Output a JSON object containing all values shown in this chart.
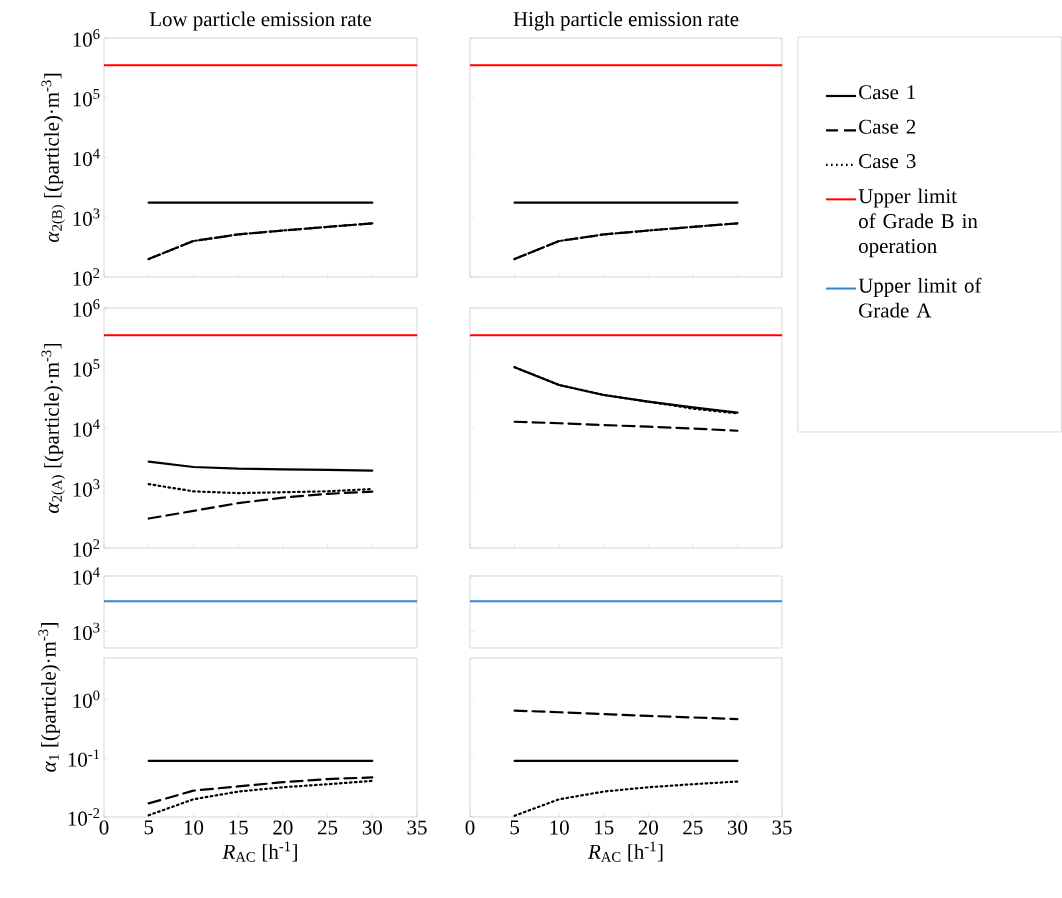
{
  "chart_data": [
    {
      "type": "line",
      "title": "Low particle emission rate",
      "ylabel": "*α*$_{2(B)}$ [(particle)·m$^{-3}$]",
      "log": true,
      "tick_labels": "y",
      "xlim": [
        0,
        35
      ],
      "xticks": [
        0,
        5,
        10,
        15,
        20,
        25,
        30,
        35
      ],
      "ylim": [
        100,
        1000000
      ],
      "yticks": [
        {
          "value": 100,
          "label": "10$^{2}$"
        },
        {
          "value": 1000,
          "label": "10$^{3}$"
        },
        {
          "value": 10000,
          "label": "10$^{4}$"
        },
        {
          "value": 100000,
          "label": "10$^{5}$"
        },
        {
          "value": 1000000,
          "label": "10$^{6}$"
        }
      ],
      "x": [
        5,
        10,
        15,
        20,
        25,
        30
      ],
      "series": [
        {
          "color": "#000000",
          "line_style": "solid",
          "values": [
            1750,
            1750,
            1750,
            1750,
            1750,
            1750
          ]
        },
        {
          "color": "#000000",
          "line_style": "dashed",
          "values": [
            200,
            400,
            515,
            600,
            690,
            790
          ]
        },
        {
          "color": "#000000",
          "line_style": "dotted",
          "values": [
            200,
            400,
            515,
            600,
            690,
            790
          ]
        }
      ],
      "ref_lines": [
        {
          "axis": "y",
          "value": 350000,
          "color": "#ff0000"
        }
      ]
    },
    {
      "type": "line",
      "title": "High particle emission rate",
      "log": true,
      "tick_labels": false,
      "legend": "right",
      "xlim": [
        0,
        35
      ],
      "xticks": [
        0,
        5,
        10,
        15,
        20,
        25,
        30,
        35
      ],
      "ylim": [
        100,
        1000000
      ],
      "yticks": [
        {
          "value": 100,
          "label": null
        },
        {
          "value": 1000,
          "label": null
        },
        {
          "value": 10000,
          "label": null
        },
        {
          "value": 100000,
          "label": null
        },
        {
          "value": 1000000,
          "label": null
        }
      ],
      "x": [
        5,
        10,
        15,
        20,
        25,
        30
      ],
      "series": [
        {
          "name": "Case 1",
          "color": "#000000",
          "line_style": "solid",
          "values": [
            1750,
            1750,
            1750,
            1750,
            1750,
            1750
          ]
        },
        {
          "name": "Case 2",
          "color": "#000000",
          "line_style": "dashed",
          "values": [
            200,
            400,
            515,
            600,
            690,
            790
          ]
        },
        {
          "name": "Case 3",
          "color": "#000000",
          "line_style": "dotted",
          "values": [
            200,
            400,
            515,
            600,
            690,
            790
          ]
        }
      ],
      "ref_lines": [
        {
          "axis": "y",
          "value": 350000,
          "color": "#ff0000",
          "label": "Upper limit of Grade B in operation"
        }
      ]
    },
    {
      "type": "line",
      "ylabel": "*α*$_{2(A)}$ [(particle)·m$^{-3}$]",
      "log": true,
      "tick_labels": "y",
      "xlim": [
        0,
        35
      ],
      "xticks": [
        0,
        5,
        10,
        15,
        20,
        25,
        30,
        35
      ],
      "ylim": [
        100,
        1000000
      ],
      "yticks": [
        {
          "value": 100,
          "label": "10$^{2}$"
        },
        {
          "value": 1000,
          "label": "10$^{3}$"
        },
        {
          "value": 10000,
          "label": "10$^{4}$"
        },
        {
          "value": 100000,
          "label": "10$^{5}$"
        },
        {
          "value": 1000000,
          "label": "10$^{6}$"
        }
      ],
      "x": [
        5,
        10,
        15,
        20,
        25,
        30
      ],
      "series": [
        {
          "color": "#000000",
          "line_style": "solid",
          "values": [
            2750,
            2240,
            2100,
            2050,
            2000,
            1950
          ]
        },
        {
          "color": "#000000",
          "line_style": "dashed",
          "values": [
            310,
            415,
            560,
            690,
            800,
            870
          ]
        },
        {
          "color": "#000000",
          "line_style": "dotted",
          "values": [
            1160,
            880,
            820,
            850,
            880,
            960
          ]
        }
      ],
      "ref_lines": [
        {
          "axis": "y",
          "value": 350000,
          "color": "#ff0000"
        }
      ]
    },
    {
      "type": "line",
      "log": true,
      "tick_labels": false,
      "xlim": [
        0,
        35
      ],
      "xticks": [
        0,
        5,
        10,
        15,
        20,
        25,
        30,
        35
      ],
      "ylim": [
        100,
        1000000
      ],
      "yticks": [
        {
          "value": 100,
          "label": null
        },
        {
          "value": 1000,
          "label": null
        },
        {
          "value": 10000,
          "label": null
        },
        {
          "value": 100000,
          "label": null
        },
        {
          "value": 1000000,
          "label": null
        }
      ],
      "x": [
        5,
        10,
        15,
        20,
        25,
        30
      ],
      "series": [
        {
          "color": "#000000",
          "line_style": "solid",
          "values": [
            103000,
            52000,
            35500,
            27500,
            22000,
            18000
          ]
        },
        {
          "color": "#000000",
          "line_style": "dashed",
          "values": [
            12700,
            12000,
            11200,
            10500,
            9800,
            9000
          ]
        },
        {
          "color": "#000000",
          "line_style": "dotted",
          "values": [
            103000,
            52000,
            35500,
            27500,
            21000,
            17500
          ]
        }
      ],
      "ref_lines": [
        {
          "axis": "y",
          "value": 350000,
          "color": "#ff0000"
        }
      ]
    },
    {
      "type": "line",
      "log": true,
      "tick_labels": "y",
      "xlim": [
        0,
        35
      ],
      "ylim": [
        500,
        10000
      ],
      "yticks": [
        {
          "value": 1000,
          "label": "10$^{3}$"
        },
        {
          "value": 10000,
          "label": "10$^{4}$"
        }
      ],
      "ref_lines": [
        {
          "axis": "y",
          "value": 3500,
          "color": "#2e86d4"
        }
      ]
    },
    {
      "type": "line",
      "log": true,
      "tick_labels": false,
      "xlim": [
        0,
        35
      ],
      "ylim": [
        500,
        10000
      ],
      "yticks": [
        {
          "value": 1000,
          "label": null
        },
        {
          "value": 10000,
          "label": null
        }
      ],
      "ref_lines": [
        {
          "axis": "y",
          "value": 3500,
          "color": "#2e86d4",
          "label": "Upper limit of Grade A"
        }
      ]
    },
    {
      "type": "line",
      "xlabel": "*R*$_{AC}$ [h$^{-1}$]",
      "ylabel": "*α*$_{1}$ [(particle)·m$^{-3}$]",
      "log": true,
      "xlim": [
        0,
        35
      ],
      "xticks": [
        0,
        5,
        10,
        15,
        20,
        25,
        30,
        35
      ],
      "ylim": [
        0.01,
        5
      ],
      "yticks": [
        {
          "value": 0.01,
          "label": "10$^{-2}$"
        },
        {
          "value": 0.1,
          "label": "10$^{-1}$"
        },
        {
          "value": 1,
          "label": "10$^{0}$"
        }
      ],
      "x": [
        5,
        10,
        15,
        20,
        25,
        30
      ],
      "series": [
        {
          "color": "#000000",
          "line_style": "solid",
          "values": [
            0.09,
            0.09,
            0.09,
            0.09,
            0.09,
            0.09
          ]
        },
        {
          "color": "#000000",
          "line_style": "dashed",
          "values": [
            0.017,
            0.028,
            0.033,
            0.039,
            0.044,
            0.047
          ]
        },
        {
          "color": "#000000",
          "line_style": "dotted",
          "values": [
            0.0107,
            0.02,
            0.027,
            0.032,
            0.036,
            0.041
          ]
        }
      ]
    },
    {
      "type": "line",
      "xlabel": "*R*$_{AC}$ [h$^{-1}$]",
      "log": true,
      "tick_labels": "x",
      "xlim": [
        0,
        35
      ],
      "xticks": [
        0,
        5,
        10,
        15,
        20,
        25,
        30,
        35
      ],
      "ylim": [
        0.01,
        5
      ],
      "yticks": [
        {
          "value": 0.01,
          "label": null
        },
        {
          "value": 0.1,
          "label": null
        },
        {
          "value": 1,
          "label": null
        }
      ],
      "x": [
        5,
        10,
        15,
        20,
        25,
        30
      ],
      "series": [
        {
          "color": "#000000",
          "line_style": "solid",
          "values": [
            0.09,
            0.09,
            0.09,
            0.09,
            0.09,
            0.09
          ]
        },
        {
          "color": "#000000",
          "line_style": "dashed",
          "values": [
            0.64,
            0.6,
            0.56,
            0.52,
            0.49,
            0.46
          ]
        },
        {
          "color": "#000000",
          "line_style": "dotted",
          "values": [
            0.0105,
            0.02,
            0.027,
            0.032,
            0.036,
            0.04
          ]
        }
      ]
    }
  ]
}
